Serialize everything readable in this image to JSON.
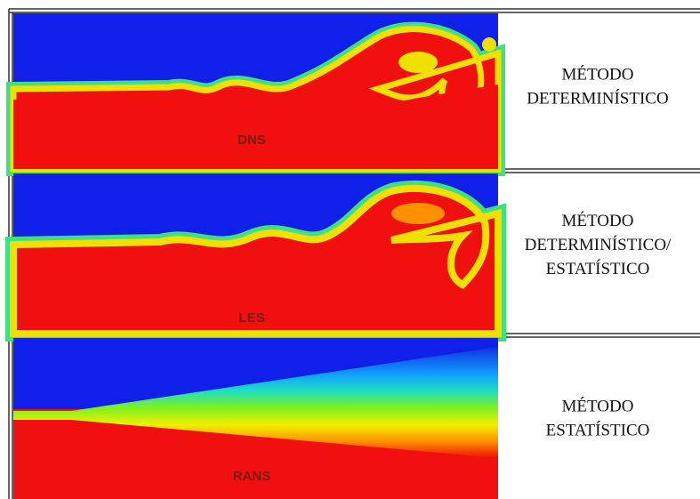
{
  "rows": [
    {
      "label": "DNS",
      "method": [
        "MÉTODO",
        "DETERMINÍSTICO"
      ]
    },
    {
      "label": "LES",
      "method": [
        "MÉTODO",
        "DETERMINÍSTICO/",
        "ESTATÍSTICO"
      ]
    },
    {
      "label": "RANS",
      "method": [
        "MÉTODO",
        "ESTATÍSTICO"
      ]
    }
  ]
}
